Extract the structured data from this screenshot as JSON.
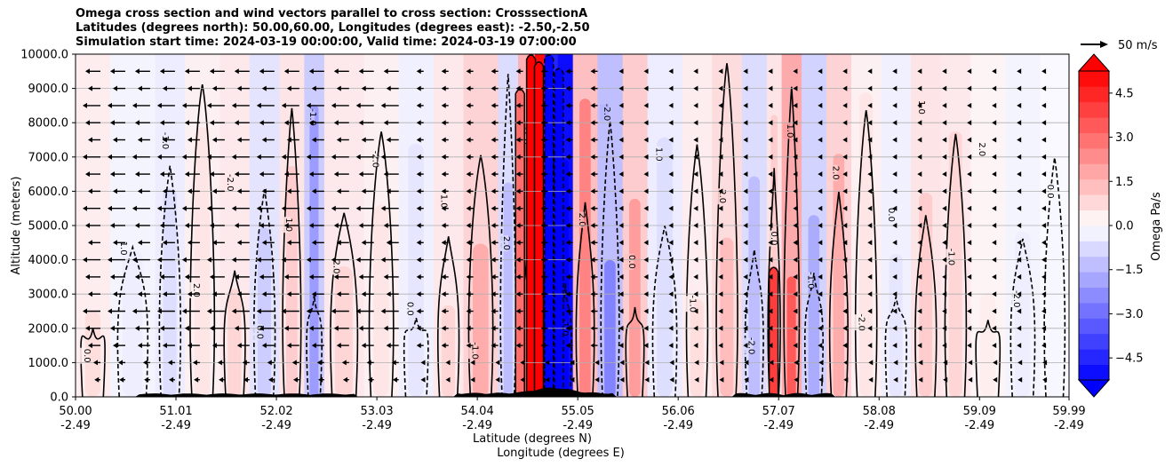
{
  "chart_data": {
    "type": "heatmap",
    "subtype": "cross-section filled contour with wind vectors",
    "title_lines": [
      "Omega cross section and wind vectors parallel to cross section: CrosssectionA",
      "Latitudes (degrees north): 50.00,60.00, Longitudes (degrees east): -2.50,-2.50",
      "Simulation start time: 2024-03-19 00:00:00, Valid time: 2024-03-19 07:00:00"
    ],
    "ylabel": "Altitude (meters)",
    "xlabel_lat": "Latitude (degrees N)",
    "xlabel_lon": "Longitude (degrees E)",
    "ylim": [
      0,
      10000
    ],
    "xlim": [
      50.0,
      59.99
    ],
    "yticks": [
      0,
      1000,
      2000,
      3000,
      4000,
      5000,
      6000,
      7000,
      8000,
      9000,
      10000
    ],
    "ytick_labels": [
      "0.0",
      "1000.0",
      "2000.0",
      "3000.0",
      "4000.0",
      "5000.0",
      "6000.0",
      "7000.0",
      "8000.0",
      "9000.0",
      "10000.0"
    ],
    "xticks": [
      50.0,
      51.01,
      52.02,
      53.03,
      54.04,
      55.05,
      56.06,
      57.07,
      58.08,
      59.09,
      59.99
    ],
    "xtick_lat_labels": [
      "50.00",
      "51.01",
      "52.02",
      "53.03",
      "54.04",
      "55.05",
      "56.06",
      "57.07",
      "58.08",
      "59.09",
      "59.99"
    ],
    "xtick_lon_labels": [
      "-2.49",
      "-2.49",
      "-2.49",
      "-2.49",
      "-2.49",
      "-2.49",
      "-2.49",
      "-2.49",
      "-2.49",
      "-2.49",
      "-2.49"
    ],
    "grid": "horizontal",
    "colorbar": {
      "label": "Omega Pa/s",
      "range": [
        -5.25,
        5.25
      ],
      "ticks": [
        -4.5,
        -3.0,
        -1.5,
        0.0,
        1.5,
        3.0,
        4.5
      ],
      "tick_labels": [
        "−4.5",
        "−3.0",
        "−1.5",
        "0.0",
        "1.5",
        "3.0",
        "4.5"
      ],
      "extend": "both",
      "colormap": "bwr"
    },
    "quiver_key": {
      "label": "50 m/s",
      "value": 50
    },
    "omega_bands": [
      {
        "lat": 50.0,
        "value": 0.4
      },
      {
        "lat": 50.35,
        "value": -0.2
      },
      {
        "lat": 50.8,
        "value": -0.4
      },
      {
        "lat": 51.1,
        "value": 0.3
      },
      {
        "lat": 51.45,
        "value": 0.5
      },
      {
        "lat": 51.75,
        "value": -0.6
      },
      {
        "lat": 52.05,
        "value": 0.6
      },
      {
        "lat": 52.3,
        "value": -1.2
      },
      {
        "lat": 52.5,
        "value": 0.5
      },
      {
        "lat": 52.9,
        "value": 0.3
      },
      {
        "lat": 53.25,
        "value": -0.3
      },
      {
        "lat": 53.6,
        "value": 0.5
      },
      {
        "lat": 53.9,
        "value": 1.0
      },
      {
        "lat": 54.25,
        "value": -0.8
      },
      {
        "lat": 54.45,
        "value": 1.8
      },
      {
        "lat": 54.62,
        "value": 5.0
      },
      {
        "lat": 54.72,
        "value": -4.5
      },
      {
        "lat": 54.85,
        "value": -5.0
      },
      {
        "lat": 55.0,
        "value": 1.5
      },
      {
        "lat": 55.25,
        "value": -1.5
      },
      {
        "lat": 55.5,
        "value": 1.2
      },
      {
        "lat": 55.75,
        "value": -0.4
      },
      {
        "lat": 56.1,
        "value": 0.4
      },
      {
        "lat": 56.4,
        "value": 0.8
      },
      {
        "lat": 56.7,
        "value": -0.8
      },
      {
        "lat": 56.95,
        "value": 0.6
      },
      {
        "lat": 57.1,
        "value": 2.0
      },
      {
        "lat": 57.3,
        "value": -1.0
      },
      {
        "lat": 57.55,
        "value": 1.0
      },
      {
        "lat": 57.8,
        "value": 0.3
      },
      {
        "lat": 58.1,
        "value": -0.3
      },
      {
        "lat": 58.4,
        "value": 0.6
      },
      {
        "lat": 58.7,
        "value": 0.5
      },
      {
        "lat": 59.0,
        "value": 0.2
      },
      {
        "lat": 59.35,
        "value": -0.2
      },
      {
        "lat": 59.7,
        "value": -0.1
      }
    ],
    "contour_labels": [
      "0.0",
      "1.0",
      "-1.0",
      "2.0",
      "-2.0"
    ]
  }
}
